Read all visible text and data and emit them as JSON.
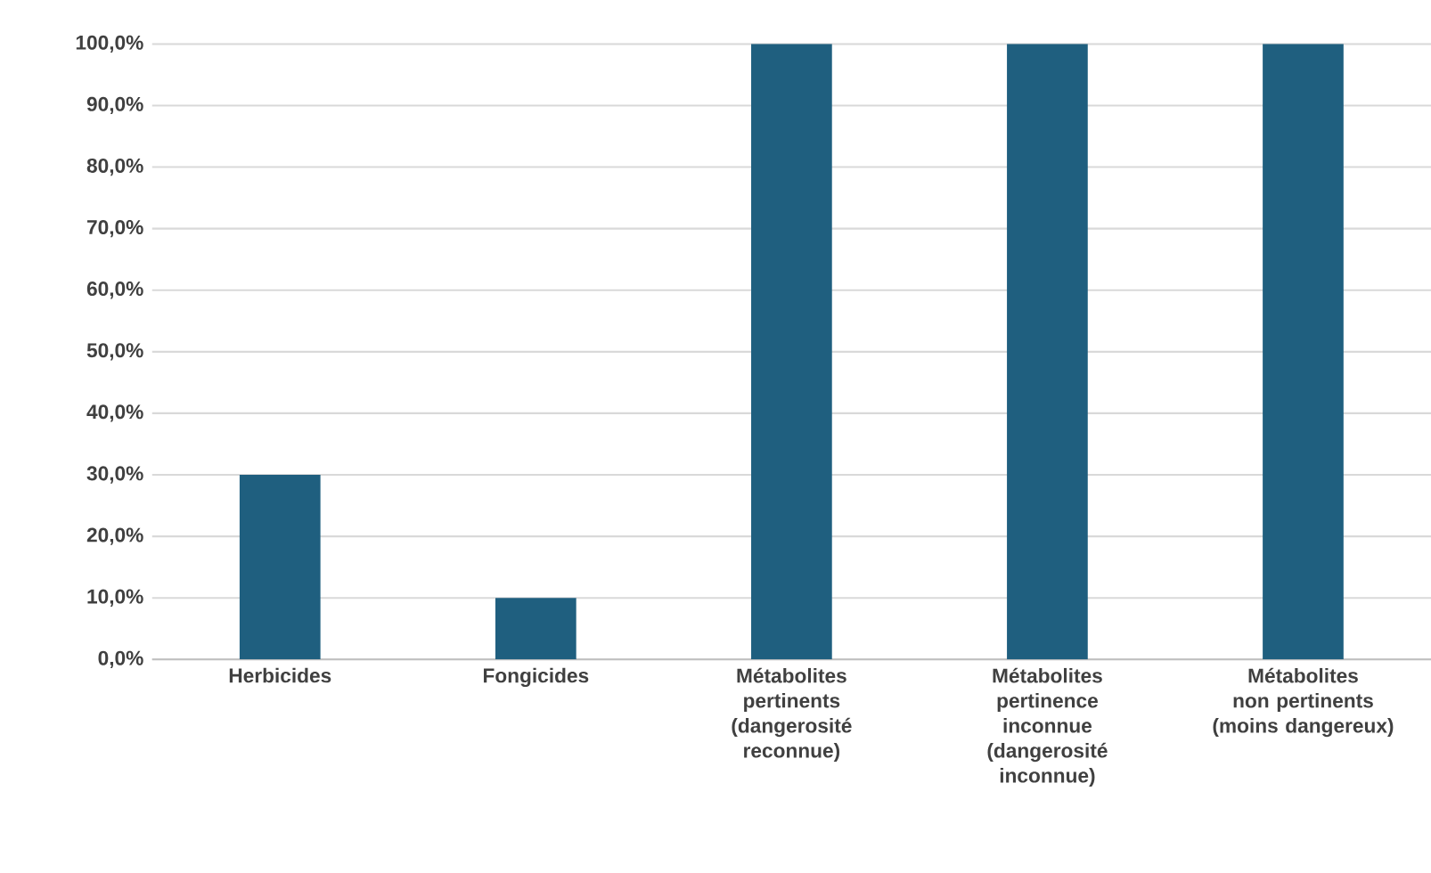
{
  "chart_data": {
    "type": "bar",
    "categories": [
      "Herbicides",
      "Fongicides",
      "Métabolites pertinents (dangerosité reconnue)",
      "Métabolites pertinence inconnue (dangerosité inconnue)",
      "Métabolites non pertinents (moins dangereux)"
    ],
    "values": [
      30,
      10,
      100,
      100,
      100
    ],
    "color": "#1f5f7f",
    "ylim": [
      0,
      100
    ],
    "yticks": [
      {
        "value": 0,
        "label": "0,0%"
      },
      {
        "value": 10,
        "label": "10,0%"
      },
      {
        "value": 20,
        "label": "20,0%"
      },
      {
        "value": 30,
        "label": "30,0%"
      },
      {
        "value": 40,
        "label": "40,0%"
      },
      {
        "value": 50,
        "label": "50,0%"
      },
      {
        "value": 60,
        "label": "60,0%"
      },
      {
        "value": 70,
        "label": "70,0%"
      },
      {
        "value": 80,
        "label": "80,0%"
      },
      {
        "value": 90,
        "label": "90,0%"
      },
      {
        "value": 100,
        "label": "100,0%"
      }
    ],
    "grid": "y"
  }
}
